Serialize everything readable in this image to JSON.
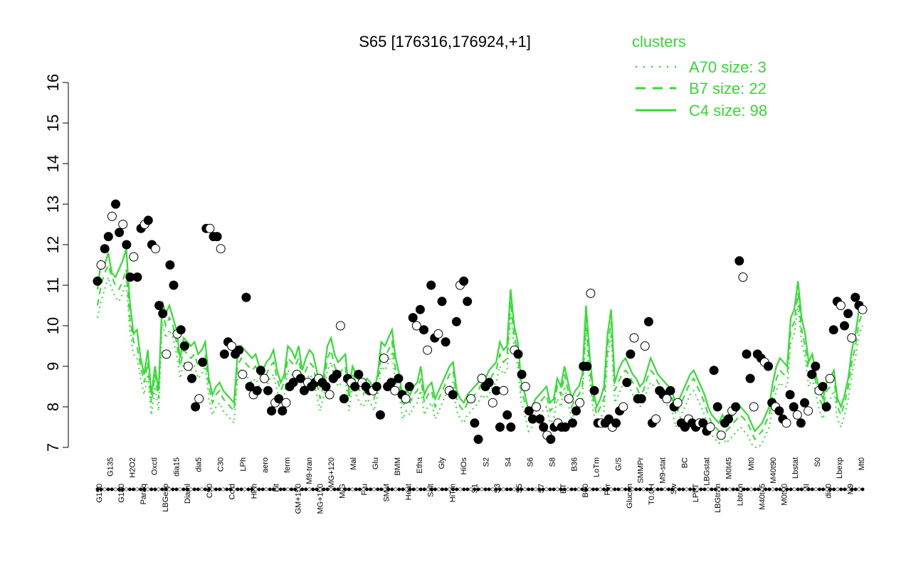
{
  "chart_data": {
    "type": "line",
    "title": "S65 [176316,176924,+1]",
    "xlabel": "",
    "ylabel": "",
    "ylim": [
      7,
      16
    ],
    "yticks": [
      7,
      8,
      9,
      10,
      11,
      12,
      13,
      14,
      15,
      16
    ],
    "grid": false,
    "legend": {
      "title": "clusters",
      "placement": "top-right",
      "entries": [
        {
          "label": "A70 size: 3",
          "style": "dotted"
        },
        {
          "label": "B7 size: 22",
          "style": "dashed"
        },
        {
          "label": "C4 size: 98",
          "style": "solid"
        }
      ]
    },
    "colors": {
      "lines": "#33dd33",
      "points_fill_dark": "#000000",
      "points_fill_light": "#ffffff",
      "axis": "#000000"
    },
    "categories_shown": [
      "G150",
      "G135",
      "G180",
      "H2O2",
      "Paraq",
      "Oxctl",
      "LBGexp",
      "dia15",
      "Diaml",
      "dia5",
      "C90",
      "C30",
      "Cold",
      "LPh",
      "HPh",
      "aero",
      "nit",
      "ferm",
      "GM+150",
      "M9-tran",
      "MG+150",
      "MG+120",
      "M/G",
      "Mal",
      "Fru",
      "Glu",
      "SMM",
      "BMM",
      "Heat",
      "Etha",
      "Salt",
      "Gly",
      "HiTm",
      "HiOs",
      "S1",
      "S2",
      "S3",
      "S4",
      "S5",
      "S6",
      "S7",
      "S8",
      "BT",
      "B36",
      "B60",
      "LoTm",
      "Pyr",
      "G/S",
      "Glucon",
      "SMMPr",
      "T0.0H",
      "M9-stat",
      "Sw",
      "BC",
      "LPhT",
      "LBGstat",
      "LBGtran",
      "M0t45",
      "Lbtran",
      "Mt0",
      "M40t45",
      "M40t90",
      "M0t90",
      "Lbstat",
      "BI",
      "S0",
      "dia0",
      "Lbexp",
      "M9",
      "Mt0"
    ],
    "series": [
      {
        "name": "C4 size: 98",
        "style": "solid",
        "values": [
          10.9,
          11.6,
          11.5,
          11.8,
          11.3,
          11.2,
          11.4,
          11.6,
          11.9,
          10.6,
          9.8,
          9.9,
          9.2,
          8.8,
          9.4,
          8.3,
          9.0,
          8.4,
          10.6,
          10.3,
          10.5,
          10.2,
          9.9,
          9.2,
          9.7,
          9.6,
          9.5,
          9.6,
          9.3,
          9.4,
          9.6,
          8.7,
          8.3,
          8.5,
          8.6,
          8.4,
          8.3,
          8.2,
          8.1,
          9.3,
          9.5,
          9.4,
          9.3,
          9.2,
          9.3,
          9.0,
          8.9,
          9.1,
          9.2,
          9.4,
          8.9,
          8.6,
          8.8,
          9.5,
          9.4,
          9.2,
          9.5,
          8.9,
          9.2,
          9.4,
          9.3,
          8.9,
          8.5,
          8.8,
          9.5,
          9.7,
          9.3,
          9.1,
          9.2,
          9.3,
          8.4,
          9.0,
          8.8,
          8.6,
          8.5,
          8.7,
          8.6,
          8.4,
          8.8,
          9.6,
          9.5,
          9.7,
          9.9,
          9.2,
          8.8,
          8.2,
          8.4,
          8.3,
          8.5,
          8.6,
          9.0,
          8.3,
          8.5,
          8.6,
          8.2,
          8.4,
          8.6,
          8.8,
          9.0,
          9.1,
          8.4,
          8.2,
          8.1,
          8.3,
          8.4,
          8.5,
          8.6,
          8.8,
          8.7,
          8.9,
          9.0,
          9.1,
          9.6,
          9.4,
          9.5,
          10.9,
          10.0,
          9.6,
          8.6,
          8.3,
          7.9,
          8.0,
          8.2,
          8.3,
          8.4,
          8.5,
          8.1,
          8.2,
          8.7,
          8.5,
          9.0,
          8.6,
          8.2,
          8.4,
          8.5,
          8.8,
          10.5,
          9.3,
          8.4,
          8.0,
          8.2,
          8.5,
          9.8,
          10.4,
          8.6,
          8.9,
          9.1,
          9.2,
          9.0,
          8.8,
          8.7,
          8.5,
          8.6,
          8.9,
          9.2,
          9.0,
          8.8,
          8.7,
          8.6,
          8.5,
          8.4,
          8.0,
          8.2,
          8.4,
          8.6,
          8.8,
          8.9,
          8.7,
          8.5,
          8.3,
          8.0,
          7.8,
          7.7,
          7.6,
          7.8,
          7.6,
          7.7,
          7.8,
          7.9,
          8.0,
          7.9,
          7.8,
          7.6,
          7.4,
          7.5,
          7.6,
          7.8,
          8.0,
          8.6,
          9.0,
          9.2,
          9.1,
          9.0,
          10.2,
          10.4,
          11.1,
          10.2,
          9.8,
          9.1,
          9.3,
          8.8,
          8.4,
          8.2,
          8.6,
          8.7,
          8.9,
          8.2,
          8.0,
          8.3,
          8.7,
          9.4,
          9.8,
          10.4,
          10.6
        ]
      },
      {
        "name": "B7 size: 22",
        "style": "dashed",
        "values": [
          10.5,
          11.0,
          11.3,
          11.5,
          11.2,
          11.0,
          10.9,
          11.1,
          11.4,
          10.2,
          9.6,
          9.5,
          9.0,
          8.6,
          9.1,
          8.1,
          8.8,
          8.2,
          10.4,
          10.0,
          10.2,
          10.0,
          9.6,
          9.0,
          9.4,
          9.3,
          9.2,
          9.3,
          9.0,
          9.1,
          9.3,
          8.5,
          8.1,
          8.3,
          8.4,
          8.2,
          8.1,
          8.0,
          7.9,
          9.0,
          9.2,
          9.1,
          9.0,
          8.9,
          9.0,
          8.8,
          8.7,
          8.8,
          9.0,
          9.1,
          8.7,
          8.4,
          8.6,
          9.2,
          9.1,
          9.0,
          9.2,
          8.7,
          8.9,
          9.1,
          9.0,
          8.6,
          8.2,
          8.6,
          9.2,
          9.4,
          9.0,
          8.8,
          8.9,
          9.0,
          8.2,
          8.8,
          8.6,
          8.4,
          8.3,
          8.5,
          8.4,
          8.2,
          8.6,
          9.3,
          9.2,
          9.4,
          9.6,
          8.9,
          8.6,
          8.0,
          8.2,
          8.1,
          8.3,
          8.4,
          8.7,
          8.1,
          8.3,
          8.4,
          8.0,
          8.2,
          8.4,
          8.6,
          8.8,
          8.9,
          8.2,
          8.0,
          7.9,
          8.1,
          8.2,
          8.3,
          8.4,
          8.6,
          8.5,
          8.6,
          8.8,
          8.9,
          9.3,
          9.1,
          9.2,
          10.6,
          9.8,
          9.3,
          8.4,
          8.1,
          7.7,
          7.8,
          8.0,
          8.1,
          8.2,
          8.3,
          7.9,
          8.0,
          8.5,
          8.3,
          8.8,
          8.4,
          8.0,
          8.2,
          8.3,
          8.5,
          10.2,
          9.0,
          8.2,
          7.8,
          8.0,
          8.2,
          9.5,
          10.1,
          8.4,
          8.6,
          8.8,
          8.9,
          8.8,
          8.6,
          8.5,
          8.3,
          8.4,
          8.7,
          8.9,
          8.8,
          8.6,
          8.5,
          8.4,
          8.3,
          8.2,
          7.8,
          8.0,
          8.2,
          8.4,
          8.6,
          8.7,
          8.5,
          8.3,
          8.1,
          7.8,
          7.6,
          7.5,
          7.4,
          7.6,
          7.4,
          7.5,
          7.6,
          7.7,
          7.8,
          7.7,
          7.6,
          7.4,
          7.2,
          7.3,
          7.4,
          7.6,
          7.8,
          8.3,
          8.7,
          8.9,
          8.8,
          8.8,
          9.9,
          10.1,
          10.8,
          9.9,
          9.5,
          8.8,
          9.0,
          8.6,
          8.2,
          8.0,
          8.4,
          8.5,
          8.7,
          8.0,
          7.8,
          8.1,
          8.5,
          9.1,
          9.5,
          10.1,
          10.3
        ]
      },
      {
        "name": "A70 size: 3",
        "style": "dotted",
        "values": [
          10.2,
          10.6,
          10.9,
          11.2,
          10.9,
          10.7,
          10.6,
          10.8,
          11.1,
          9.9,
          9.3,
          9.2,
          8.7,
          8.3,
          8.8,
          7.8,
          8.5,
          7.9,
          10.1,
          9.7,
          9.9,
          9.7,
          9.3,
          8.7,
          9.1,
          9.0,
          8.9,
          9.0,
          8.7,
          8.8,
          9.0,
          8.2,
          7.8,
          8.0,
          8.1,
          7.9,
          7.8,
          7.7,
          7.6,
          8.7,
          8.9,
          8.8,
          8.7,
          8.6,
          8.7,
          8.5,
          8.4,
          8.5,
          8.7,
          8.8,
          8.4,
          8.1,
          8.3,
          8.9,
          8.8,
          8.7,
          8.9,
          8.4,
          8.6,
          8.8,
          8.7,
          8.3,
          7.9,
          8.3,
          8.9,
          9.1,
          8.7,
          8.5,
          8.6,
          8.7,
          7.9,
          8.5,
          8.3,
          8.1,
          8.0,
          8.2,
          8.1,
          7.9,
          8.3,
          9.0,
          8.9,
          9.1,
          9.3,
          8.6,
          8.3,
          7.7,
          7.9,
          7.8,
          8.0,
          8.1,
          8.4,
          7.8,
          8.0,
          8.1,
          7.7,
          7.9,
          8.1,
          8.3,
          8.5,
          8.6,
          7.9,
          7.7,
          7.6,
          7.8,
          7.9,
          8.0,
          8.1,
          8.3,
          8.2,
          8.3,
          8.5,
          8.6,
          9.0,
          8.8,
          8.9,
          10.3,
          9.5,
          9.0,
          8.1,
          7.8,
          7.4,
          7.5,
          7.7,
          7.8,
          7.9,
          8.0,
          7.6,
          7.7,
          8.2,
          8.0,
          8.5,
          8.1,
          7.7,
          7.9,
          8.0,
          8.2,
          9.9,
          8.7,
          7.9,
          7.5,
          7.7,
          7.9,
          9.2,
          9.8,
          8.1,
          8.3,
          8.5,
          8.6,
          8.5,
          8.3,
          8.2,
          8.0,
          8.1,
          8.4,
          8.6,
          8.5,
          8.3,
          8.2,
          8.1,
          8.0,
          7.9,
          7.5,
          7.7,
          7.9,
          8.1,
          8.3,
          8.4,
          8.2,
          8.0,
          7.8,
          7.5,
          7.3,
          7.2,
          7.1,
          7.3,
          7.1,
          7.2,
          7.3,
          7.4,
          7.5,
          7.4,
          7.3,
          7.1,
          7.0,
          7.0,
          7.1,
          7.3,
          7.5,
          8.0,
          8.4,
          8.6,
          8.5,
          8.5,
          9.6,
          9.8,
          10.5,
          9.6,
          9.2,
          8.5,
          8.7,
          8.3,
          7.9,
          7.7,
          8.1,
          8.2,
          8.4,
          7.7,
          7.5,
          7.8,
          8.2,
          8.8,
          9.2,
          9.8,
          10.0
        ]
      },
      {
        "name": "",
        "style": "points",
        "values": [
          11.1,
          11.5,
          11.9,
          12.2,
          12.7,
          13.0,
          12.3,
          12.5,
          12.0,
          11.2,
          11.7,
          11.2,
          12.4,
          12.5,
          12.6,
          12.0,
          11.9,
          10.5,
          10.3,
          9.3,
          11.5,
          11.0,
          9.8,
          9.9,
          9.5,
          9.0,
          8.7,
          8.0,
          8.2,
          9.1,
          12.4,
          12.4,
          12.2,
          12.2,
          11.9,
          9.3,
          9.6,
          9.5,
          9.3,
          9.4,
          8.8,
          10.7,
          8.5,
          8.3,
          8.4,
          8.9,
          8.7,
          8.4,
          7.9,
          8.1,
          8.2,
          7.9,
          8.1,
          8.5,
          8.6,
          8.8,
          8.7,
          8.4,
          8.6,
          8.5,
          8.6,
          8.7,
          8.6,
          8.5,
          8.3,
          8.7,
          8.8,
          10.0,
          8.2,
          8.7,
          8.6,
          8.5,
          8.8,
          8.6,
          8.5,
          8.4,
          8.4,
          8.5,
          7.8,
          9.2,
          8.5,
          8.6,
          8.4,
          8.7,
          8.3,
          8.2,
          8.5,
          10.2,
          10.0,
          10.4,
          9.9,
          9.4,
          11.0,
          9.7,
          9.8,
          10.6,
          9.6,
          8.4,
          8.3,
          10.1,
          11.0,
          11.1,
          10.6,
          8.2,
          7.6,
          7.2,
          8.7,
          8.5,
          8.6,
          8.1,
          8.4,
          7.5,
          8.4,
          7.8,
          7.5,
          9.4,
          9.3,
          8.8,
          8.5,
          7.9,
          7.7,
          8.0,
          7.7,
          7.5,
          7.3,
          7.2,
          7.5,
          7.6,
          7.5,
          7.5,
          8.2,
          7.6,
          7.9,
          8.1,
          9.0,
          9.0,
          10.8,
          8.4,
          7.6,
          7.6,
          7.6,
          7.7,
          7.5,
          7.6,
          7.9,
          8.0,
          8.6,
          9.3,
          9.7,
          8.2,
          8.2,
          9.5,
          10.1,
          7.6,
          7.7,
          8.4,
          8.3,
          8.2,
          8.4,
          8.0,
          8.1,
          7.6,
          7.5,
          7.7,
          7.6,
          7.5,
          7.6,
          7.6,
          7.4,
          7.5,
          8.9,
          8.0,
          7.3,
          7.6,
          7.7,
          7.9,
          8.0,
          11.6,
          11.2,
          9.3,
          8.7,
          8.0,
          9.3,
          9.2,
          9.1,
          9.0,
          8.1,
          8.0,
          7.9,
          7.7,
          7.6,
          8.3,
          8.0,
          7.8,
          7.6,
          8.1,
          7.9,
          8.8,
          9.0,
          8.4,
          8.5,
          8.0,
          8.7,
          9.9,
          10.6,
          10.5,
          10.0,
          10.3,
          9.7,
          10.7,
          10.5,
          10.4
        ]
      }
    ]
  }
}
